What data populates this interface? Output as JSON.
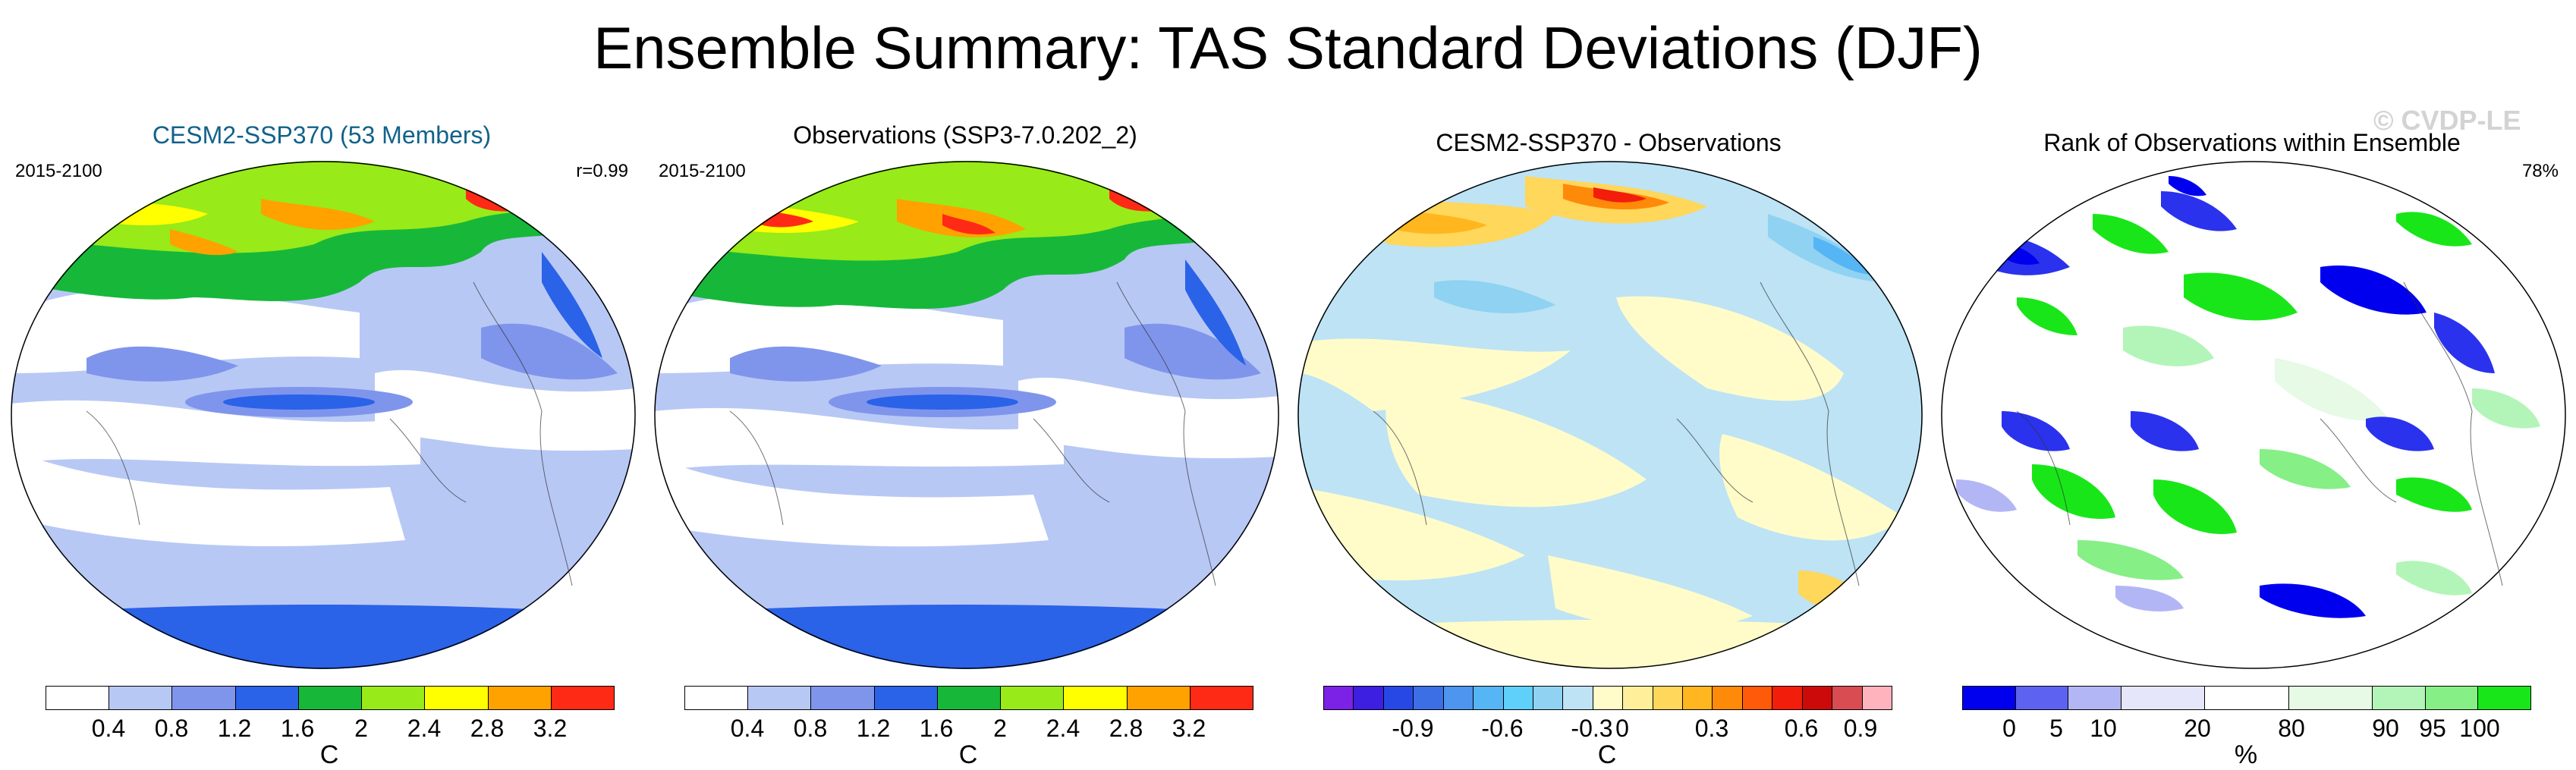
{
  "title": "Ensemble Summary: TAS Standard Deviations (DJF)",
  "watermark": "© CVDP-LE",
  "panels": [
    {
      "title": "CESM2-SSP370 (53 Members)",
      "left_label": "2015-2100",
      "right_label": "r=0.99",
      "colorbar": {
        "colors": [
          "#ffffff",
          "#b8c8f5",
          "#7f95ec",
          "#2a62e8",
          "#17b83a",
          "#98ea19",
          "#ffff00",
          "#ffa200",
          "#ff2a15"
        ],
        "tick_labels": [
          "0.4",
          "0.8",
          "1.2",
          "1.6",
          "2",
          "2.4",
          "2.8",
          "3.2"
        ],
        "unit": "C"
      }
    },
    {
      "title": "Observations (SSP3-7.0.202_2)",
      "left_label": "2015-2100",
      "right_label": "",
      "colorbar": {
        "colors": [
          "#ffffff",
          "#b8c8f5",
          "#7f95ec",
          "#2a62e8",
          "#17b83a",
          "#98ea19",
          "#ffff00",
          "#ffa200",
          "#ff2a15"
        ],
        "tick_labels": [
          "0.4",
          "0.8",
          "1.2",
          "1.6",
          "2",
          "2.4",
          "2.8",
          "3.2"
        ],
        "unit": "C"
      }
    },
    {
      "title": "CESM2-SSP370 - Observations",
      "left_label": "",
      "right_label": "",
      "colorbar": {
        "colors": [
          "#7b22e6",
          "#3c1fe0",
          "#2848e6",
          "#3c6fe6",
          "#4d95ef",
          "#55b5f5",
          "#5fd0fa",
          "#8fd2f2",
          "#bde3f5",
          "#fffcca",
          "#ffef9a",
          "#ffd75a",
          "#ffb61f",
          "#ff8a0a",
          "#ff5a0a",
          "#f21d0a",
          "#cc0a0a",
          "#d94c52",
          "#ffb3bd"
        ],
        "tick_labels": [
          "-0.9",
          "-0.6",
          "-0.3",
          "0",
          "0.3",
          "0.6",
          "0.9"
        ],
        "unit": "C"
      }
    },
    {
      "title": "Rank of Observations within Ensemble",
      "left_label": "",
      "right_label": "78%",
      "colorbar": {
        "colors": [
          "#0000ee",
          "#5d63f0",
          "#b3b6f5",
          "#e6e6fa",
          "#ffffff",
          "#e6fae6",
          "#b3f5b8",
          "#86ef86",
          "#19e619"
        ],
        "tick_labels": [
          "0",
          "5",
          "10",
          "20",
          "80",
          "90",
          "95",
          "100"
        ],
        "unit": "%"
      }
    }
  ]
}
